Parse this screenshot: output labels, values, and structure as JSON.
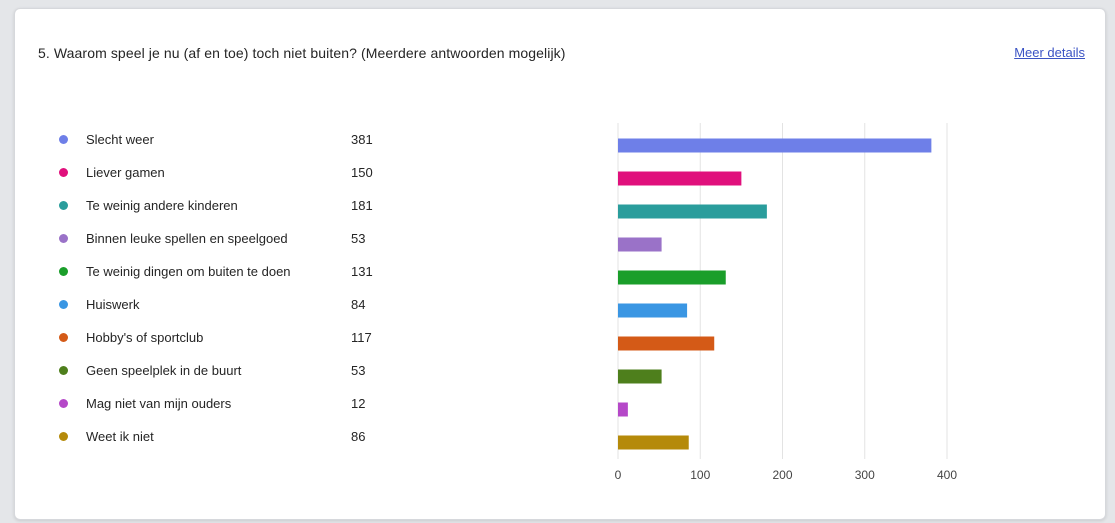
{
  "question": {
    "title": "5. Waarom speel je nu (af en toe) toch niet buiten? (Meerdere antwoorden mogelijk)",
    "more_details_label": "Meer details"
  },
  "chart_data": {
    "type": "bar",
    "orientation": "horizontal",
    "categories": [
      "Slecht weer",
      "Liever gamen",
      "Te weinig andere kinderen",
      "Binnen leuke spellen en speelgoed",
      "Te weinig dingen om buiten te doen",
      "Huiswerk",
      "Hobby's of sportclub",
      "Geen speelplek in de buurt",
      "Mag niet van mijn ouders",
      "Weet ik niet"
    ],
    "values": [
      381,
      150,
      181,
      53,
      131,
      84,
      117,
      53,
      12,
      86
    ],
    "colors": [
      "#6e7fe8",
      "#e0107c",
      "#2a9d9c",
      "#9a72c8",
      "#1a9e2a",
      "#3a96e3",
      "#d45a17",
      "#4e7f1c",
      "#b548c8",
      "#b58a0a"
    ],
    "xlim": [
      0,
      400
    ],
    "xticks": [
      0,
      100,
      200,
      300,
      400
    ],
    "grid": true,
    "legend": "left"
  }
}
